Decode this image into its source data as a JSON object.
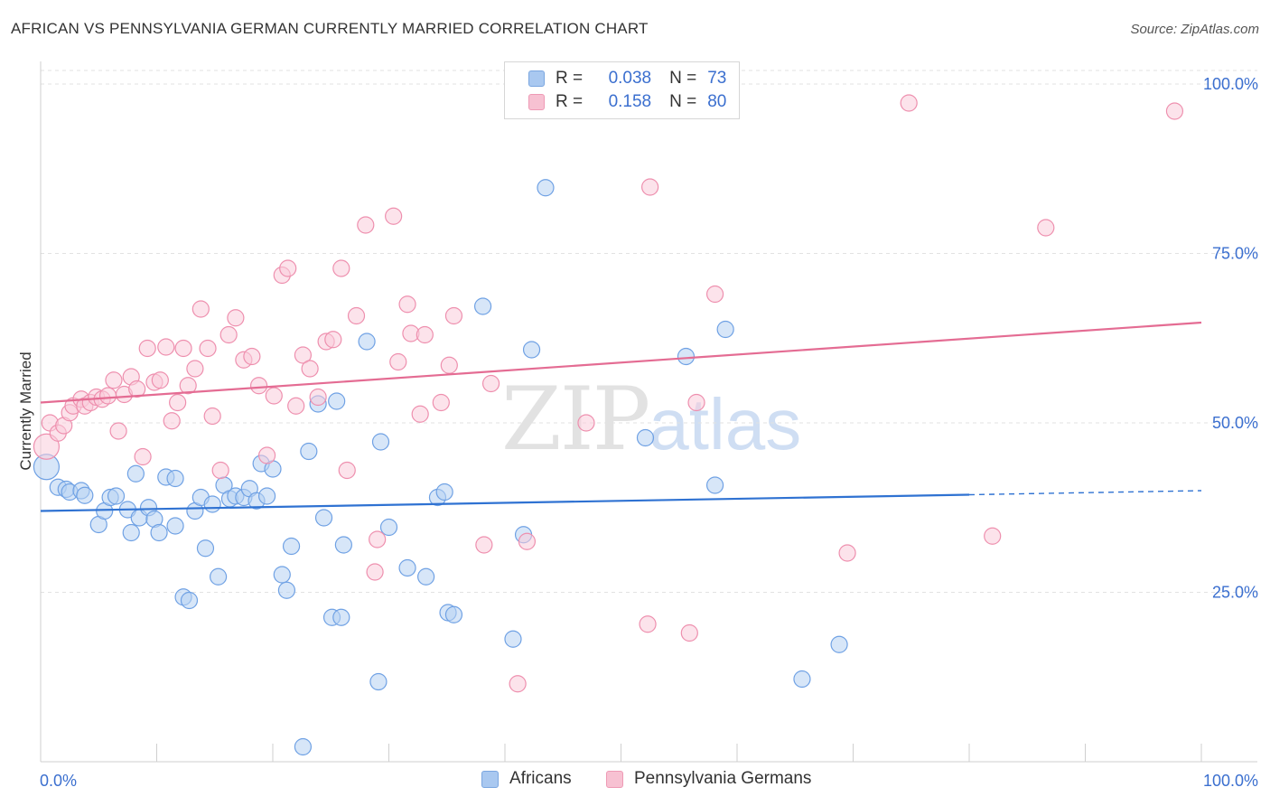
{
  "title": "AFRICAN VS PENNSYLVANIA GERMAN CURRENTLY MARRIED CORRELATION CHART",
  "source": "Source: ZipAtlas.com",
  "watermark": {
    "zip": "ZIP",
    "atlas": "atlas"
  },
  "legend": {
    "rows": [
      {
        "r_label": "R =",
        "r_value": "0.038",
        "n_label": "N =",
        "n_value": "73",
        "color": "#a9c8f0",
        "border": "#7aa6e0"
      },
      {
        "r_label": "R =",
        "r_value": "0.158",
        "n_label": "N =",
        "n_value": "80",
        "color": "#f7c1d2",
        "border": "#ee9ab5"
      }
    ]
  },
  "bottom_legend": [
    {
      "label": "Africans",
      "color": "#a9c8f0",
      "border": "#7aa6e0"
    },
    {
      "label": "Pennsylvania Germans",
      "color": "#f7c1d2",
      "border": "#ee9ab5"
    }
  ],
  "chart_data": {
    "type": "scatter",
    "title": "AFRICAN VS PENNSYLVANIA GERMAN CURRENTLY MARRIED CORRELATION CHART",
    "xlabel": "",
    "ylabel": "Currently Married",
    "xlim": [
      0,
      100
    ],
    "ylim": [
      0,
      102
    ],
    "x_tick_labels": [
      "0.0%",
      "100.0%"
    ],
    "y_ticks": [
      25,
      50,
      75,
      100
    ],
    "y_tick_labels": [
      "25.0%",
      "50.0%",
      "75.0%",
      "100.0%"
    ],
    "grid": "horizontal dashed",
    "legend_position": "top-center",
    "series": [
      {
        "name": "Africans",
        "color": "#6fa1e4",
        "fill": "#b6d1f3",
        "trend": {
          "x0": 0,
          "y0": 37.0,
          "x1": 80,
          "y1": 39.4,
          "dashed_to_x": 100,
          "dashed_to_y": 40.0,
          "color": "#2f72d2"
        },
        "points": [
          [
            0.5,
            43.5
          ],
          [
            1.5,
            40.5
          ],
          [
            2.2,
            40.2
          ],
          [
            2.5,
            39.8
          ],
          [
            3.5,
            40.0
          ],
          [
            3.8,
            39.3
          ],
          [
            5.0,
            35.0
          ],
          [
            5.5,
            37.0
          ],
          [
            6.0,
            39.0
          ],
          [
            6.5,
            39.2
          ],
          [
            7.5,
            37.2
          ],
          [
            7.8,
            33.8
          ],
          [
            8.2,
            42.5
          ],
          [
            8.5,
            36.0
          ],
          [
            9.3,
            37.5
          ],
          [
            9.8,
            35.8
          ],
          [
            10.2,
            33.8
          ],
          [
            10.8,
            42.0
          ],
          [
            11.6,
            34.8
          ],
          [
            11.6,
            41.8
          ],
          [
            12.3,
            24.3
          ],
          [
            12.8,
            23.8
          ],
          [
            13.3,
            37.0
          ],
          [
            13.8,
            39.0
          ],
          [
            14.2,
            31.5
          ],
          [
            14.8,
            38.0
          ],
          [
            15.3,
            27.3
          ],
          [
            15.8,
            40.8
          ],
          [
            16.3,
            38.8
          ],
          [
            16.8,
            39.2
          ],
          [
            17.5,
            39.0
          ],
          [
            18.0,
            40.3
          ],
          [
            18.6,
            38.5
          ],
          [
            19.0,
            44.0
          ],
          [
            19.5,
            39.2
          ],
          [
            20.0,
            43.2
          ],
          [
            20.8,
            27.6
          ],
          [
            21.2,
            25.3
          ],
          [
            21.6,
            31.8
          ],
          [
            22.6,
            2.2
          ],
          [
            23.1,
            45.8
          ],
          [
            23.9,
            52.8
          ],
          [
            24.4,
            36.0
          ],
          [
            25.1,
            21.3
          ],
          [
            25.5,
            53.2
          ],
          [
            25.9,
            21.3
          ],
          [
            26.1,
            32.0
          ],
          [
            28.1,
            62.0
          ],
          [
            29.1,
            11.8
          ],
          [
            29.3,
            47.2
          ],
          [
            30.0,
            34.6
          ],
          [
            31.6,
            28.6
          ],
          [
            33.2,
            27.3
          ],
          [
            34.2,
            39.0
          ],
          [
            34.8,
            39.8
          ],
          [
            35.1,
            22.0
          ],
          [
            35.6,
            21.7
          ],
          [
            38.1,
            67.2
          ],
          [
            40.7,
            18.1
          ],
          [
            41.6,
            33.5
          ],
          [
            42.3,
            60.8
          ],
          [
            43.5,
            84.7
          ],
          [
            52.1,
            47.8
          ],
          [
            55.6,
            59.8
          ],
          [
            58.1,
            40.8
          ],
          [
            59.0,
            63.8
          ],
          [
            65.6,
            12.2
          ],
          [
            68.8,
            17.3
          ]
        ]
      },
      {
        "name": "Pennsylvania Germans",
        "color": "#ee8fae",
        "fill": "#f9ccdb",
        "trend": {
          "x0": 0,
          "y0": 53.0,
          "x1": 100,
          "y1": 64.8,
          "color": "#e46c93"
        },
        "points": [
          [
            0.5,
            46.5
          ],
          [
            0.8,
            50.0
          ],
          [
            1.5,
            48.5
          ],
          [
            2.0,
            49.6
          ],
          [
            2.5,
            51.5
          ],
          [
            2.8,
            52.5
          ],
          [
            3.5,
            53.5
          ],
          [
            3.8,
            52.5
          ],
          [
            4.3,
            53.0
          ],
          [
            4.8,
            53.8
          ],
          [
            5.3,
            53.5
          ],
          [
            5.8,
            54.0
          ],
          [
            6.3,
            56.3
          ],
          [
            6.7,
            48.8
          ],
          [
            7.2,
            54.2
          ],
          [
            7.8,
            56.8
          ],
          [
            8.3,
            55.0
          ],
          [
            8.8,
            45.0
          ],
          [
            9.2,
            61.0
          ],
          [
            9.8,
            56.0
          ],
          [
            10.3,
            56.3
          ],
          [
            10.8,
            61.2
          ],
          [
            11.3,
            50.3
          ],
          [
            11.8,
            53.0
          ],
          [
            12.3,
            61.0
          ],
          [
            12.7,
            55.5
          ],
          [
            13.3,
            58.0
          ],
          [
            13.8,
            66.8
          ],
          [
            14.4,
            61.0
          ],
          [
            14.8,
            51.0
          ],
          [
            15.5,
            43.0
          ],
          [
            16.2,
            63.0
          ],
          [
            16.8,
            65.5
          ],
          [
            17.5,
            59.3
          ],
          [
            18.2,
            59.8
          ],
          [
            18.8,
            55.5
          ],
          [
            19.5,
            45.2
          ],
          [
            20.1,
            54.0
          ],
          [
            20.8,
            71.8
          ],
          [
            21.3,
            72.8
          ],
          [
            22.0,
            52.5
          ],
          [
            22.6,
            60.0
          ],
          [
            23.2,
            58.0
          ],
          [
            23.9,
            53.8
          ],
          [
            24.6,
            62.0
          ],
          [
            25.2,
            62.3
          ],
          [
            25.9,
            72.8
          ],
          [
            26.4,
            43.0
          ],
          [
            27.2,
            65.8
          ],
          [
            28.0,
            79.2
          ],
          [
            29.0,
            32.8
          ],
          [
            28.8,
            28.0
          ],
          [
            30.4,
            80.5
          ],
          [
            30.8,
            59.0
          ],
          [
            31.6,
            67.5
          ],
          [
            31.9,
            63.2
          ],
          [
            32.7,
            51.3
          ],
          [
            33.1,
            63.0
          ],
          [
            34.5,
            53.0
          ],
          [
            35.2,
            58.5
          ],
          [
            35.6,
            65.8
          ],
          [
            38.2,
            32.0
          ],
          [
            38.8,
            55.8
          ],
          [
            41.1,
            11.5
          ],
          [
            41.9,
            32.5
          ],
          [
            47.0,
            50.0
          ],
          [
            52.5,
            84.8
          ],
          [
            52.3,
            20.3
          ],
          [
            55.9,
            19.0
          ],
          [
            56.5,
            53.0
          ],
          [
            58.1,
            69.0
          ],
          [
            69.5,
            30.8
          ],
          [
            74.8,
            97.2
          ],
          [
            82.0,
            33.3
          ],
          [
            86.6,
            78.8
          ],
          [
            97.7,
            96.0
          ]
        ]
      }
    ]
  }
}
